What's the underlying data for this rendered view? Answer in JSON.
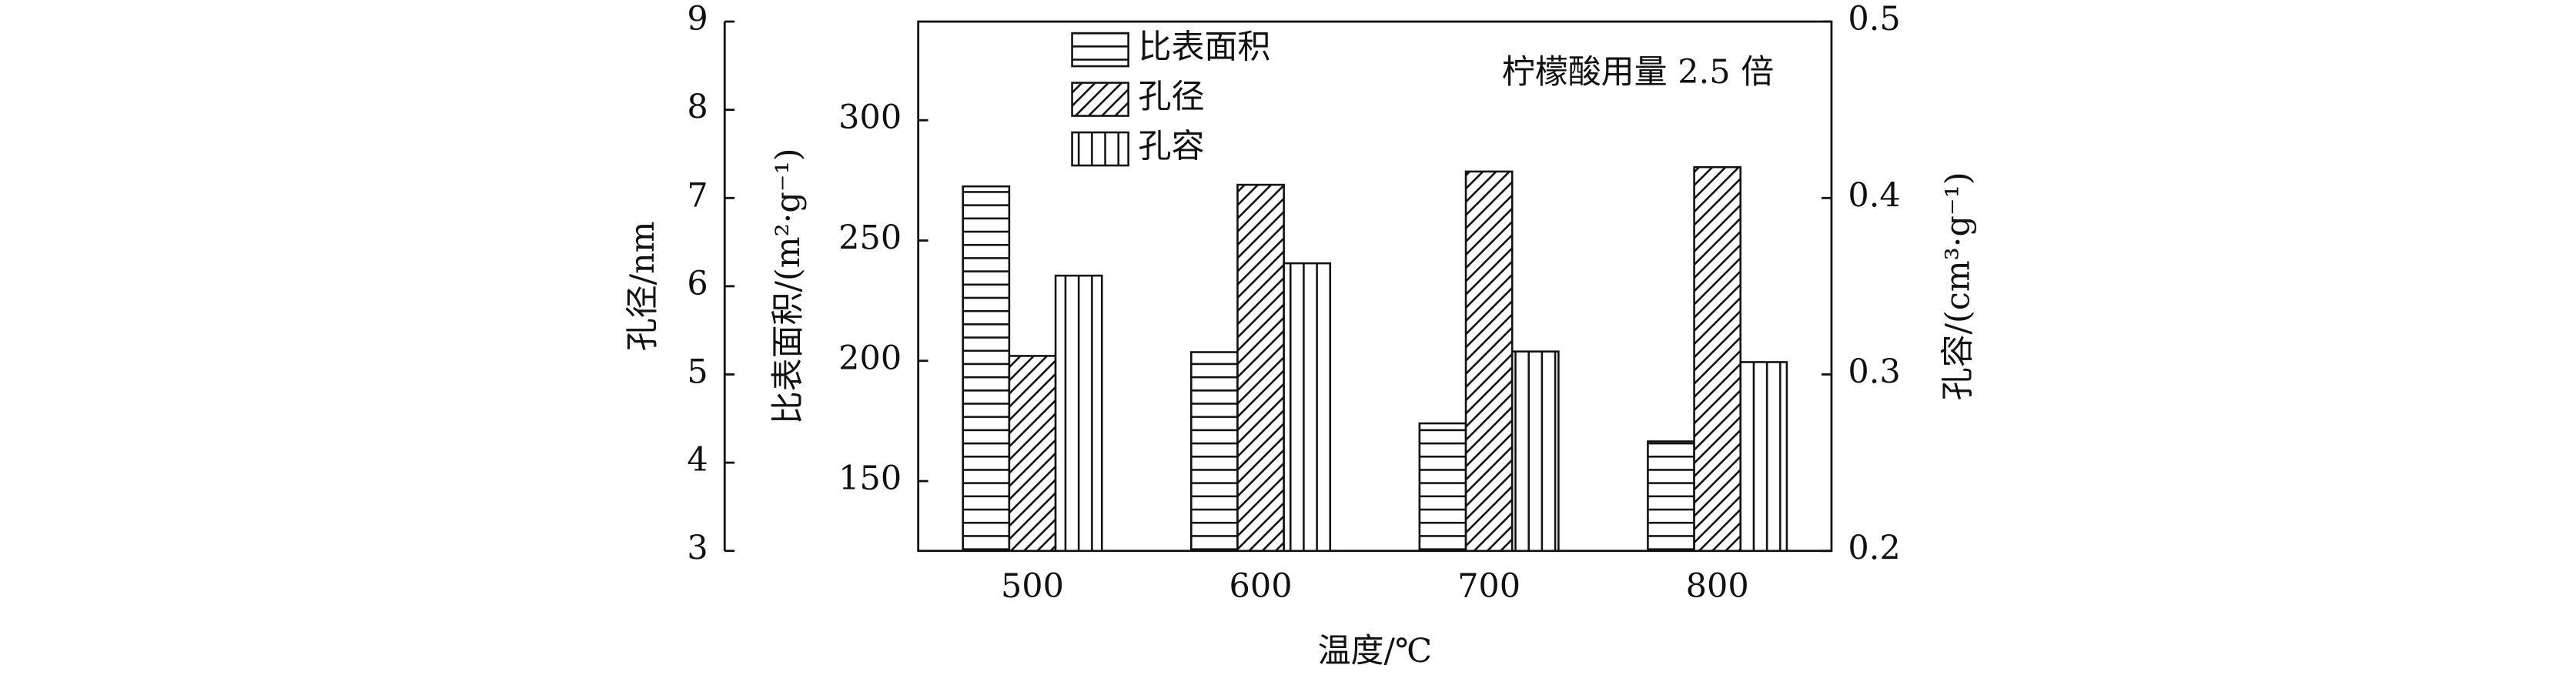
{
  "chart_data": {
    "type": "bar",
    "categories": [
      "500",
      "600",
      "700",
      "800"
    ],
    "x_label": "温度/℃",
    "y_label": "比表面积/(m²·g⁻¹)",
    "y2_label": "孔容/(cm³·g⁻¹)",
    "y3_label": "孔径/nm",
    "annotation": "柠檬酸用量 2.5 倍",
    "ylim": [
      121,
      341
    ],
    "yticks": [
      150,
      200,
      250,
      300
    ],
    "y2lim": [
      0.2,
      0.5
    ],
    "y2ticks": [
      0.2,
      0.3,
      0.4,
      0.5
    ],
    "y3lim": [
      3,
      9
    ],
    "y3ticks": [
      3,
      4,
      5,
      6,
      7,
      8,
      9
    ],
    "series": [
      {
        "name": "比表面积",
        "color": "#111111",
        "hatch": "horizontal",
        "axis": "y",
        "values": [
          272.5,
          203.6,
          174,
          166.5
        ]
      },
      {
        "name": "孔径",
        "color": "#111111",
        "hatch": "diagonal",
        "axis": "y3",
        "values": [
          5.21,
          7.15,
          7.3,
          7.35
        ]
      },
      {
        "name": "孔容",
        "color": "#111111",
        "hatch": "vertical",
        "axis": "y2",
        "values": [
          0.356,
          0.363,
          0.313,
          0.307
        ]
      }
    ]
  }
}
